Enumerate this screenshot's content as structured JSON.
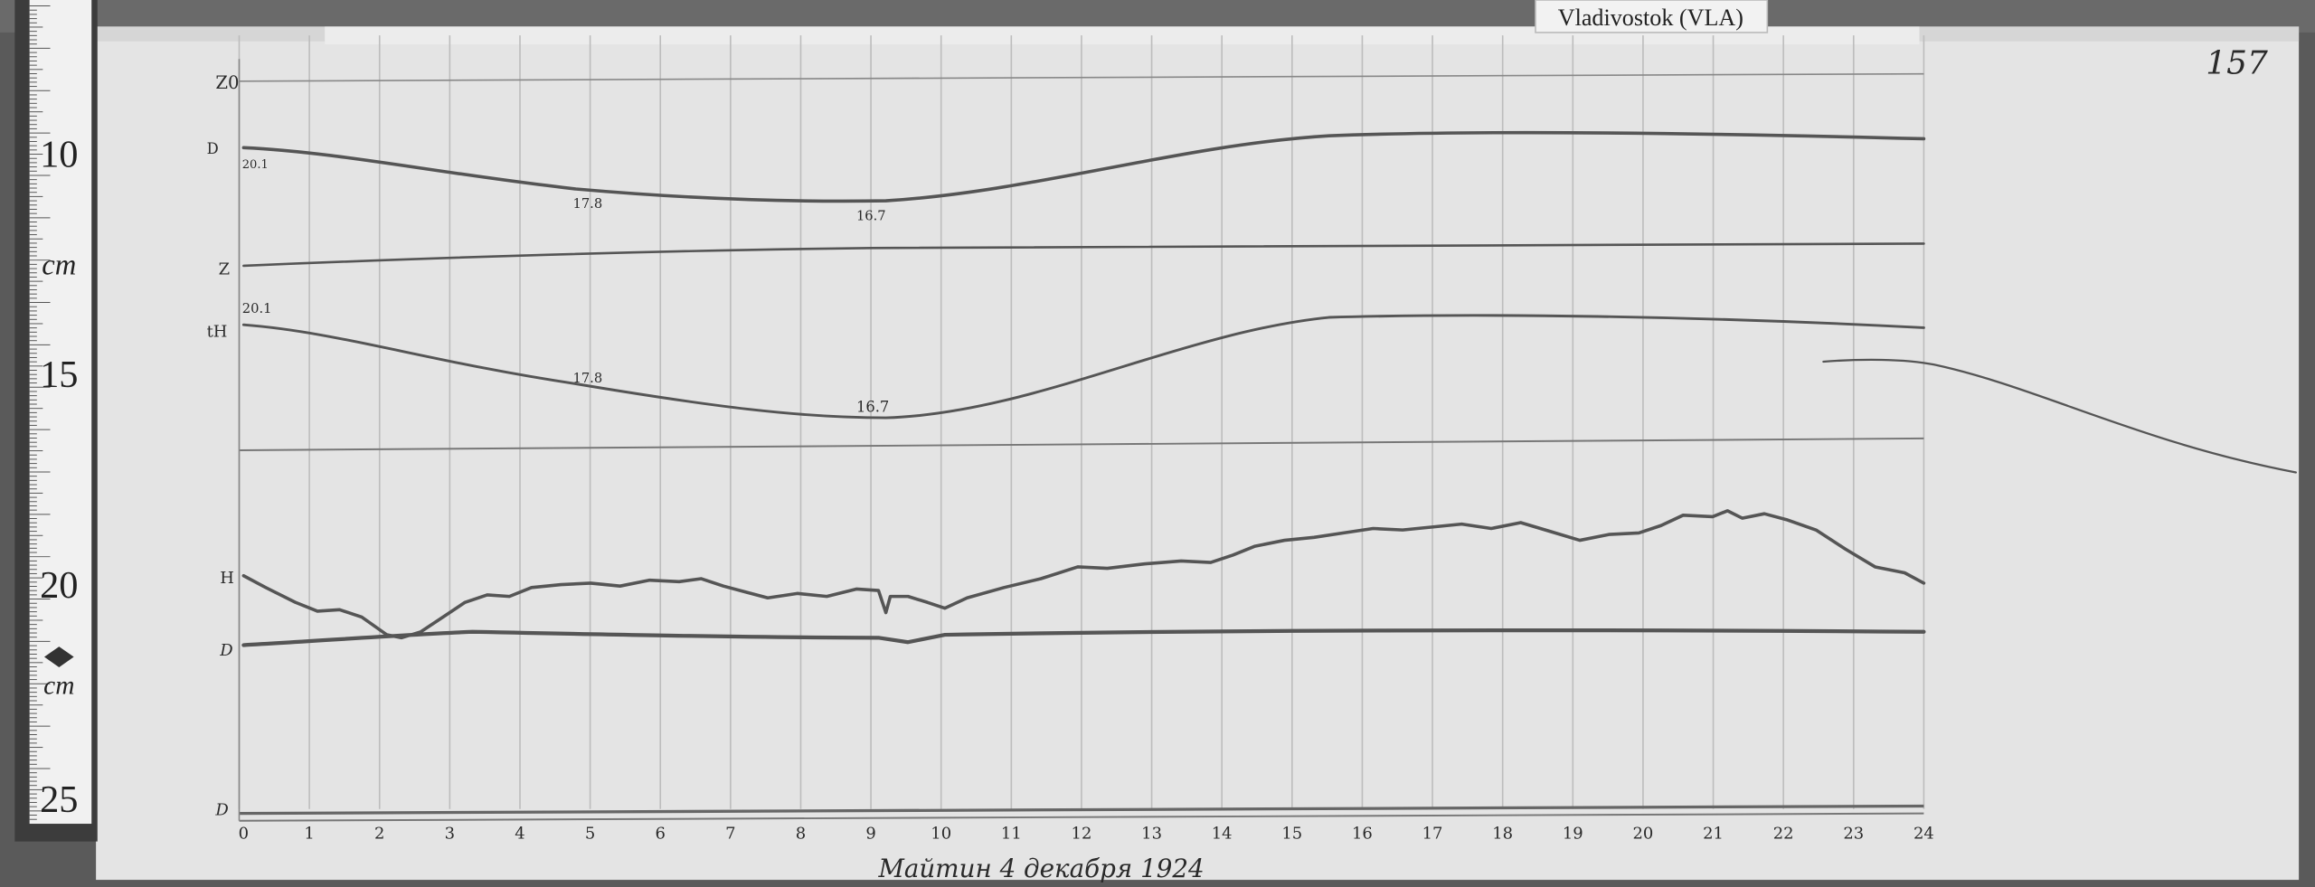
{
  "station_label": "Vladivostok (VLA)",
  "sheet_number": "157",
  "ruler": {
    "labels": [
      "10",
      "cm",
      "15",
      "20",
      "cm",
      "25"
    ]
  },
  "trace_labels": {
    "z0": "Z0",
    "d_top": "D",
    "z": "Z",
    "th": "tH",
    "h": "H",
    "d": "D",
    "d_bottom": "D"
  },
  "annotations": {
    "top_start": "20.1",
    "top_mid": "17.8",
    "top_min": "16.7",
    "th_start": "20.1",
    "th_mid": "17.8",
    "th_min": "16.7"
  },
  "hours": [
    "0",
    "1",
    "2",
    "3",
    "4",
    "5",
    "6",
    "7",
    "8",
    "9",
    "10",
    "11",
    "12",
    "13",
    "14",
    "15",
    "16",
    "17",
    "18",
    "19",
    "20",
    "21",
    "22",
    "23",
    "24"
  ],
  "handwritten_date": "Майтин 4 декабря 1924",
  "colors": {
    "paper": "#e6e6e6",
    "trace": "#555555",
    "grid": "#bdbdbd"
  }
}
